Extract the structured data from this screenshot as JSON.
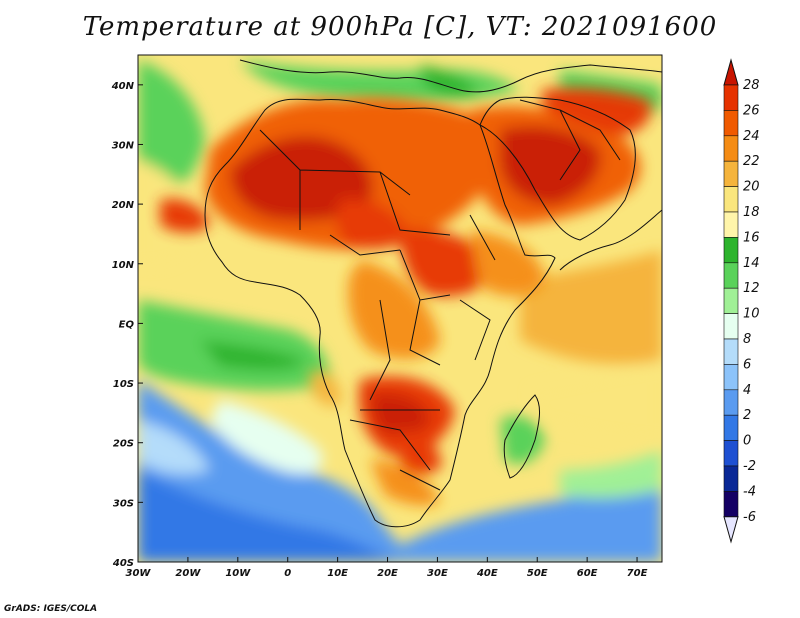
{
  "title": "Temperature at 900hPa [C], VT: 2021091600",
  "credit": "GrADS: IGES/COLA",
  "lon_ticks": [
    "30W",
    "20W",
    "10W",
    "0",
    "10E",
    "20E",
    "30E",
    "40E",
    "50E",
    "60E",
    "70E"
  ],
  "lat_ticks": [
    "40N",
    "30N",
    "20N",
    "10N",
    "EQ",
    "10S",
    "20S",
    "30S",
    "40S"
  ],
  "colorbar": {
    "labels": [
      "28",
      "26",
      "24",
      "22",
      "20",
      "18",
      "16",
      "14",
      "12",
      "10",
      "8",
      "6",
      "4",
      "2",
      "0",
      "-2",
      "-4",
      "-6"
    ],
    "colors": [
      "#c81400",
      "#e63200",
      "#f05a00",
      "#f58c14",
      "#f5b43c",
      "#fae67d",
      "#fff5aa",
      "#2db42d",
      "#5ad25a",
      "#a0f096",
      "#e6fff0",
      "#b4dcfa",
      "#8cc3fa",
      "#5a9bf0",
      "#3278e6",
      "#1e50d2",
      "#0a2896",
      "#140064",
      "#e6e6ff"
    ]
  },
  "field": {
    "variable": "temperature",
    "level_hpa": 900,
    "units": "C",
    "valid_time": "2021091600",
    "lon_range": [
      -30,
      75
    ],
    "lat_range": [
      -40,
      45
    ]
  }
}
